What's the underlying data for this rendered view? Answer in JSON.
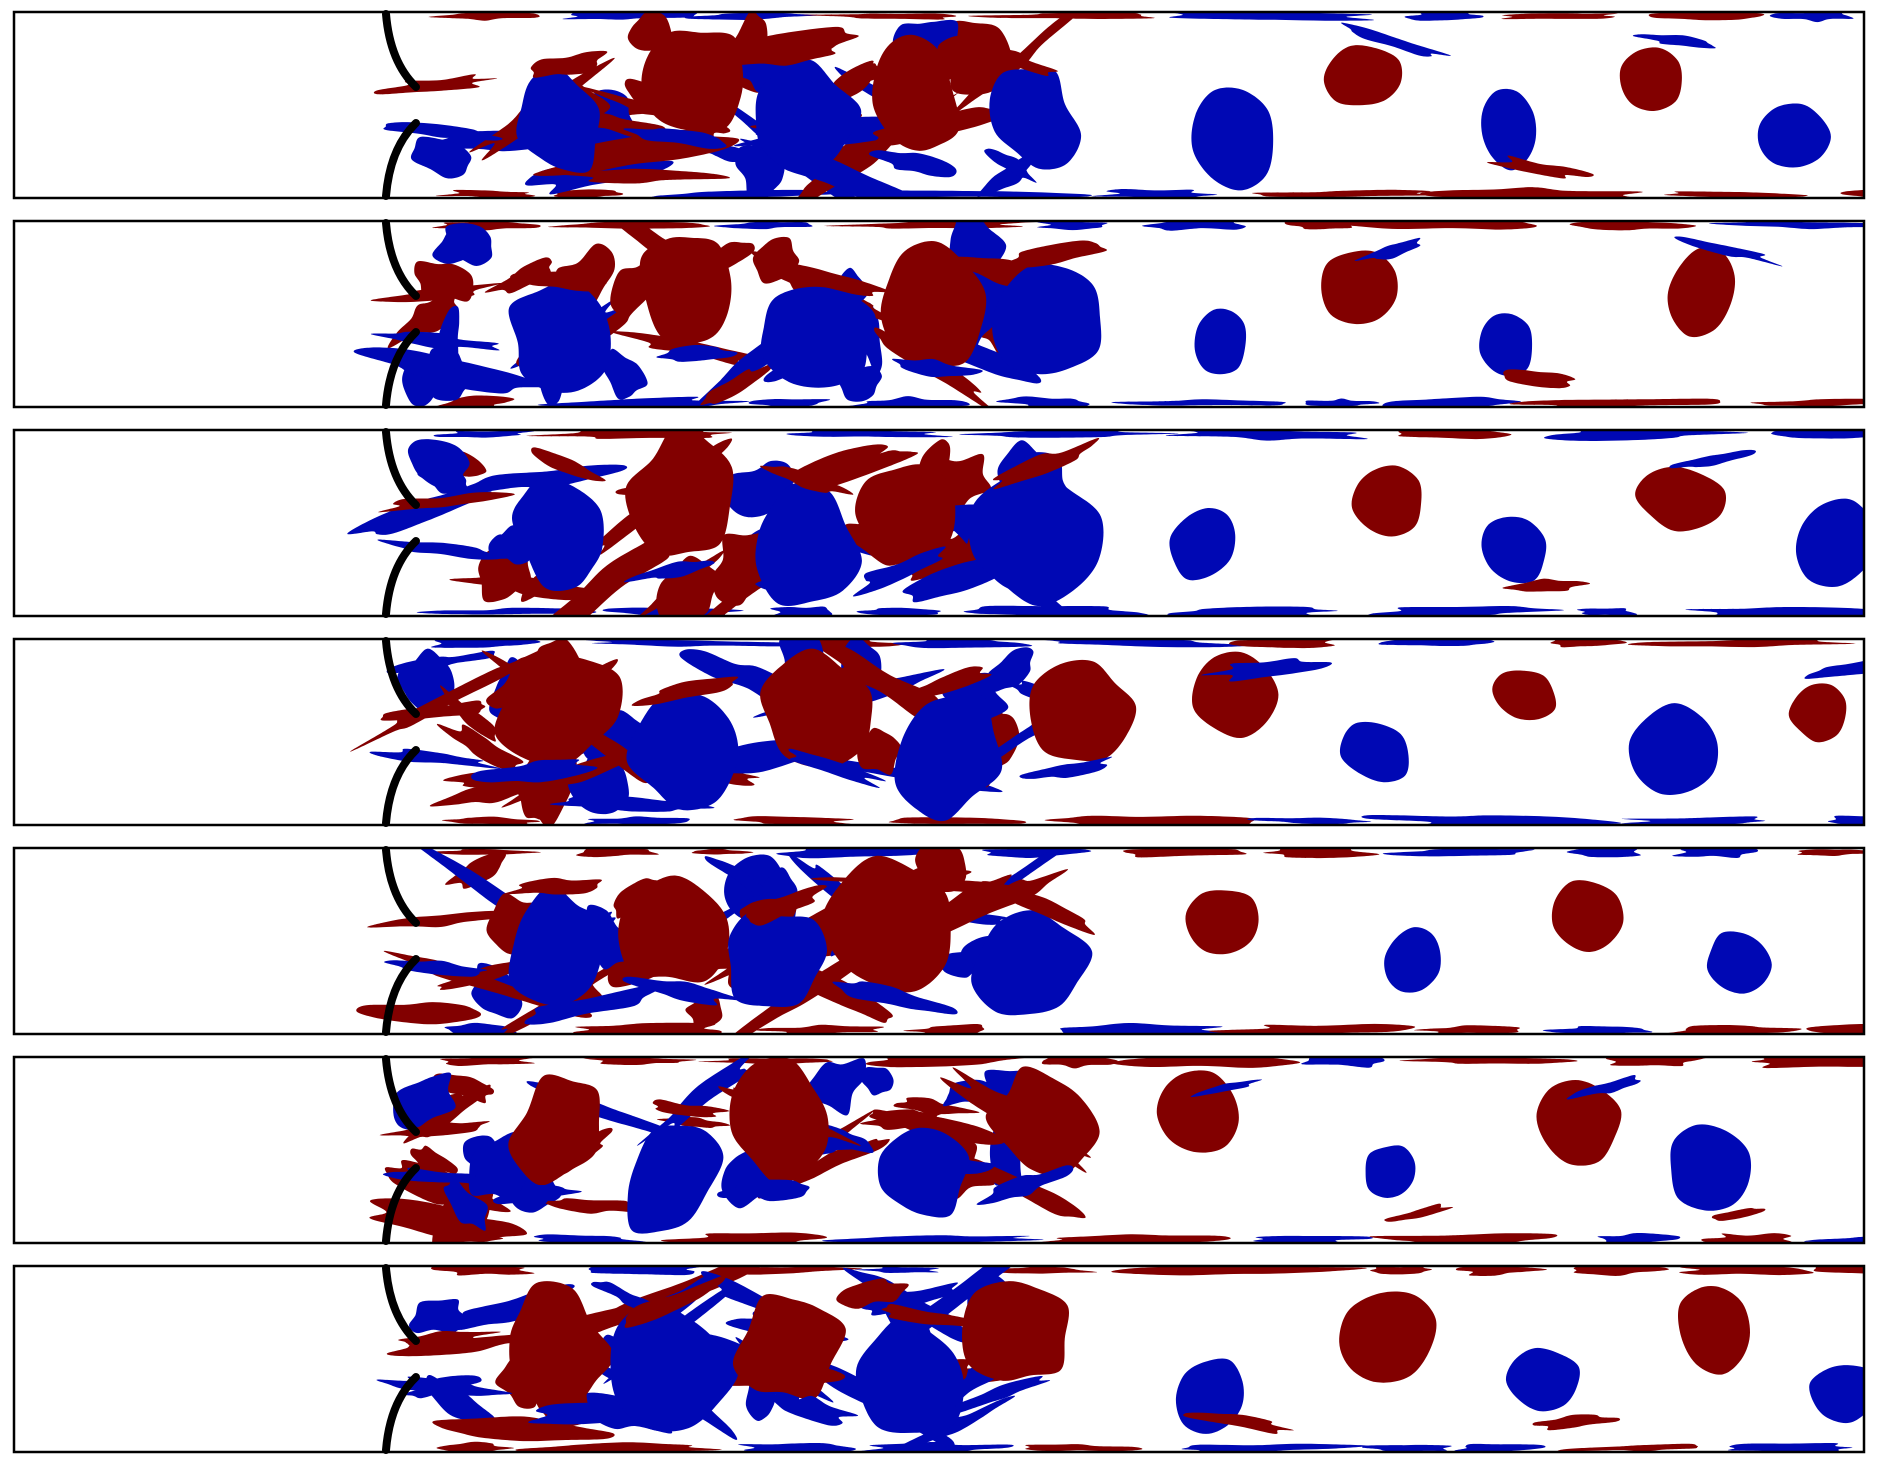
{
  "colors": {
    "positive": "#820000",
    "negative": "#0008b4",
    "wall": "#000000",
    "frame": "#000000",
    "background": "#ffffff"
  },
  "panels": [
    {
      "seed": 11,
      "wake": "mixed-vortex-street"
    },
    {
      "seed": 23,
      "wake": "mixed-vortex-street"
    },
    {
      "seed": 37,
      "wake": "mixed-vortex-street"
    },
    {
      "seed": 41,
      "wake": "narrow-vortex-street"
    },
    {
      "seed": 53,
      "wake": "mixed-vortex-street"
    },
    {
      "seed": 67,
      "wake": "mixed-vortex-street"
    },
    {
      "seed": 79,
      "wake": "mixed-vortex-street"
    }
  ]
}
